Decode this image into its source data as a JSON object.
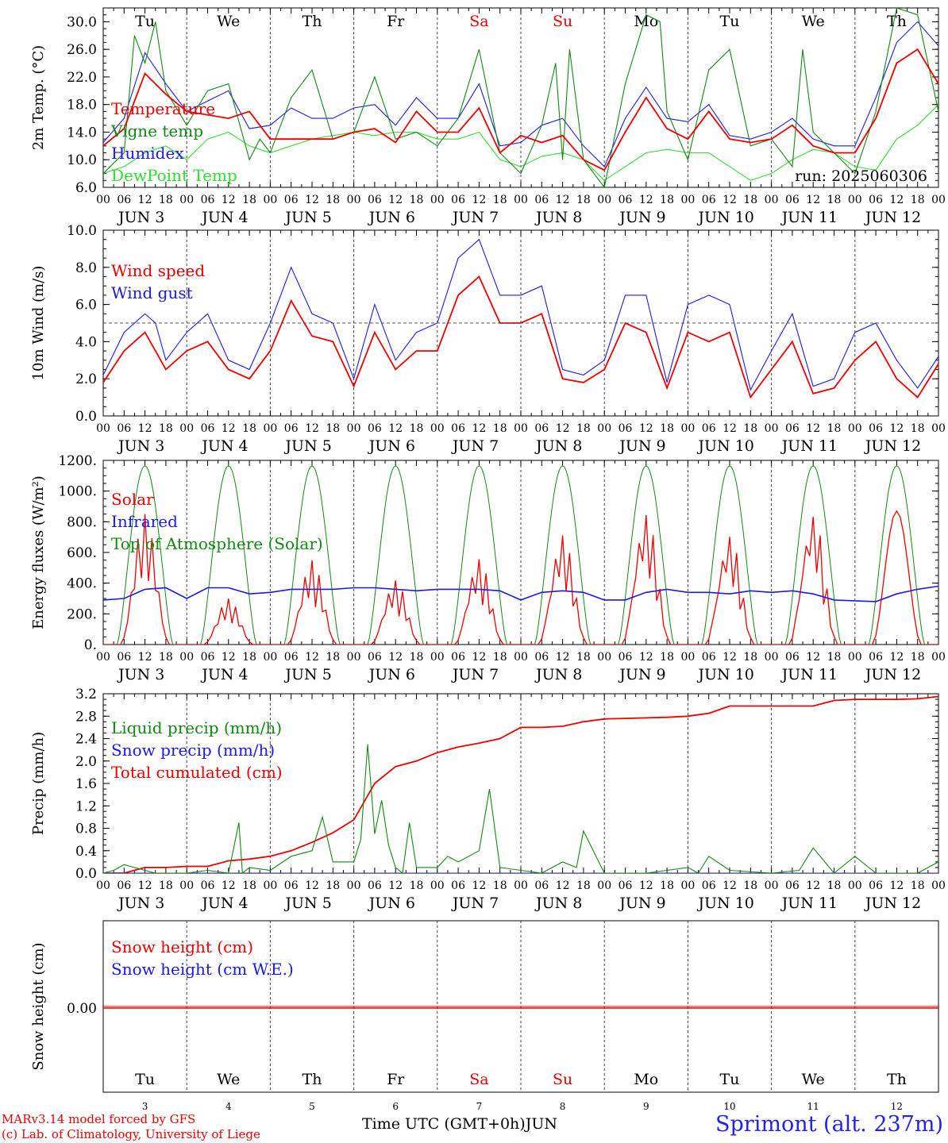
{
  "run_label": "run: 2025060306",
  "day_abbrevs": [
    "Tu",
    "We",
    "Th",
    "Fr",
    "Sa",
    "Su",
    "Mo",
    "Tu",
    "We",
    "Th"
  ],
  "weekend_flags": [
    false,
    false,
    false,
    false,
    true,
    true,
    false,
    false,
    false,
    false
  ],
  "day_numbers": [
    "3",
    "4",
    "5",
    "6",
    "7",
    "8",
    "9",
    "10",
    "11",
    "12"
  ],
  "date_labels": [
    "JUN  3",
    "JUN  4",
    "JUN  5",
    "JUN  6",
    "JUN  7",
    "JUN  8",
    "JUN  9",
    "JUN 10",
    "JUN 11",
    "JUN 12"
  ],
  "hour_labels": [
    "00",
    "06",
    "12",
    "18"
  ],
  "x_title": "Time UTC (GMT+0h)",
  "x_month": "JUN",
  "footer": {
    "line1": "MARv3.14 model forced by GFS",
    "line2": "(c) Lab. of Climatology, University of Liege",
    "station": "Sprimont (alt. 237m)"
  },
  "colors": {
    "red": "#ee0000",
    "green": "#138813",
    "blue": "#1a1ae6",
    "lightgreen": "#33dd33",
    "grid": "#444444"
  },
  "chart_data": [
    {
      "type": "line",
      "ylabel": "2m Temp. (°C)",
      "ylim": [
        6,
        32
      ],
      "ytick_labels": [
        "6.0",
        "10.0",
        "14.0",
        "18.0",
        "22.0",
        "26.0",
        "30.0"
      ],
      "legend_placement": "left",
      "series": [
        {
          "name": "Temperature",
          "color": "red",
          "x_hours": [
            0,
            6,
            12,
            18,
            24,
            36,
            42,
            48,
            54,
            60,
            66,
            72,
            78,
            84,
            90,
            96,
            102,
            108,
            114,
            120,
            126,
            132,
            138,
            144,
            150,
            156,
            162,
            168,
            174,
            180,
            186,
            192,
            198,
            204,
            210,
            216,
            222,
            228,
            234,
            240
          ],
          "values": [
            12.0,
            14.5,
            22.5,
            19.5,
            17,
            16,
            17,
            13,
            13,
            13,
            13,
            14,
            14.5,
            12.5,
            17,
            14,
            14,
            17.5,
            11,
            13.5,
            12.5,
            13.5,
            10,
            8.5,
            14,
            19,
            14.5,
            13,
            17,
            13,
            12.5,
            13,
            15,
            12,
            11,
            11,
            16,
            24,
            26,
            21
          ]
        },
        {
          "name": "Vigne temp",
          "color": "green",
          "x_hours": [
            0,
            6,
            9,
            12,
            15,
            18,
            24,
            30,
            36,
            42,
            45,
            48,
            54,
            60,
            66,
            72,
            78,
            84,
            90,
            96,
            102,
            108,
            114,
            120,
            126,
            130,
            132,
            134,
            138,
            144,
            150,
            156,
            160,
            162,
            168,
            174,
            180,
            186,
            192,
            198,
            201,
            204,
            210,
            216,
            222,
            228,
            234,
            240
          ],
          "values": [
            8,
            11,
            28,
            24,
            30,
            20,
            15,
            20,
            21,
            10,
            13,
            11,
            19,
            23,
            13,
            14,
            22,
            13,
            14,
            12,
            16,
            26,
            11,
            8,
            15,
            24,
            10,
            26,
            10,
            6,
            21,
            31,
            30,
            17,
            10,
            23,
            26,
            12,
            13,
            9,
            26,
            14,
            11,
            8,
            17,
            32,
            31,
            17
          ]
        },
        {
          "name": "Humidex",
          "color": "blue",
          "x_hours": [
            0,
            6,
            12,
            18,
            24,
            30,
            36,
            42,
            48,
            54,
            60,
            66,
            72,
            78,
            84,
            90,
            96,
            102,
            108,
            114,
            120,
            126,
            132,
            138,
            144,
            150,
            156,
            162,
            168,
            174,
            180,
            186,
            192,
            198,
            204,
            210,
            216,
            222,
            228,
            234,
            240
          ],
          "values": [
            12.5,
            16,
            25.5,
            21,
            17,
            18.5,
            20,
            14.5,
            15,
            17.5,
            16,
            16,
            17.5,
            18,
            15,
            19,
            16,
            16,
            21,
            12,
            12.5,
            15,
            16,
            12,
            9,
            16,
            20.5,
            16,
            15.5,
            18,
            13.5,
            13,
            14,
            16,
            13,
            12,
            12,
            19,
            27,
            30,
            26.5
          ]
        },
        {
          "name": "DewPoint Temp",
          "color": "lightgreen",
          "x_hours": [
            0,
            6,
            12,
            18,
            24,
            30,
            36,
            42,
            48,
            54,
            60,
            66,
            72,
            78,
            84,
            90,
            96,
            102,
            108,
            114,
            120,
            126,
            132,
            138,
            144,
            150,
            156,
            162,
            168,
            174,
            180,
            186,
            192,
            198,
            204,
            210,
            216,
            222,
            228,
            234,
            240
          ],
          "values": [
            8,
            9,
            11,
            12,
            10,
            13,
            14,
            12,
            11,
            12,
            13,
            13.5,
            14,
            13.5,
            14,
            14,
            13,
            13,
            14,
            10,
            9,
            10.5,
            11,
            10,
            7,
            9,
            11,
            11.5,
            11,
            11,
            9,
            7,
            8,
            10,
            11.5,
            11,
            9,
            8.5,
            13,
            15,
            18
          ]
        }
      ]
    },
    {
      "type": "line",
      "ylabel": "10m Wind (m/s)",
      "ylim": [
        0,
        10
      ],
      "ytick_labels": [
        "0.0",
        "2.0",
        "4.0",
        "6.0",
        "8.0",
        "10.0"
      ],
      "reference_line": 5,
      "series": [
        {
          "name": "Wind speed",
          "color": "red",
          "x_hours": [
            0,
            6,
            12,
            15,
            18,
            24,
            30,
            36,
            42,
            48,
            54,
            60,
            66,
            72,
            78,
            84,
            90,
            96,
            102,
            108,
            114,
            120,
            126,
            132,
            138,
            144,
            150,
            156,
            162,
            168,
            174,
            180,
            186,
            192,
            198,
            204,
            210,
            216,
            222,
            228,
            234,
            240
          ],
          "values": [
            1.8,
            3.5,
            4.5,
            3.5,
            2.5,
            3.5,
            4,
            2.5,
            2,
            3.5,
            6.2,
            4.3,
            4,
            1.6,
            4.5,
            2.5,
            3.5,
            3.5,
            6.5,
            7.5,
            5,
            5,
            5.5,
            2,
            1.8,
            2.5,
            5,
            4.5,
            1.5,
            4.5,
            4,
            4.5,
            1.0,
            2.5,
            4,
            1.2,
            1.5,
            3,
            4,
            2,
            1,
            2.8
          ]
        },
        {
          "name": "Wind gust",
          "color": "blue",
          "x_hours": [
            0,
            6,
            12,
            15,
            18,
            24,
            30,
            36,
            42,
            48,
            54,
            60,
            66,
            72,
            78,
            84,
            90,
            96,
            102,
            108,
            114,
            120,
            126,
            132,
            138,
            144,
            150,
            156,
            162,
            168,
            174,
            180,
            186,
            192,
            198,
            204,
            210,
            216,
            222,
            228,
            234,
            240
          ],
          "values": [
            2.2,
            4.5,
            5.5,
            5,
            3,
            4.5,
            5.5,
            3,
            2.5,
            5,
            8,
            5.5,
            5,
            2,
            6,
            3,
            4.5,
            5,
            8.5,
            9.5,
            6.5,
            6.5,
            7,
            2.5,
            2.2,
            3,
            6.5,
            6.5,
            1.8,
            6,
            6.5,
            6,
            1.4,
            3.5,
            5.5,
            1.6,
            2,
            4.5,
            5,
            3,
            1.5,
            3.2
          ]
        }
      ]
    },
    {
      "type": "line",
      "ylabel": "Energy fluxes (W/m²)",
      "ylim": [
        0,
        1200
      ],
      "ytick_labels": [
        "0.",
        "200.",
        "400.",
        "600.",
        "800.",
        "1000.",
        "1200."
      ],
      "series": [
        {
          "name": "Solar",
          "color": "red",
          "peaks": [
            850,
            300,
            550,
            420,
            560,
            720,
            860,
            720,
            860,
            870
          ]
        },
        {
          "name": "Infrared",
          "color": "blue",
          "x_hours": [
            0,
            6,
            12,
            18,
            24,
            30,
            36,
            42,
            48,
            54,
            60,
            66,
            72,
            78,
            84,
            90,
            96,
            102,
            108,
            114,
            120,
            126,
            132,
            138,
            144,
            150,
            156,
            162,
            168,
            174,
            180,
            186,
            192,
            198,
            204,
            210,
            216,
            222,
            228,
            234,
            240
          ],
          "values": [
            290,
            300,
            360,
            370,
            300,
            370,
            370,
            330,
            340,
            360,
            360,
            360,
            370,
            370,
            360,
            350,
            360,
            360,
            360,
            350,
            290,
            340,
            350,
            340,
            290,
            290,
            340,
            360,
            340,
            340,
            330,
            350,
            340,
            350,
            330,
            290,
            285,
            280,
            330,
            360,
            380
          ]
        },
        {
          "name": "Top of Atmosphere (Solar)",
          "color": "green",
          "peak": 1165
        }
      ]
    },
    {
      "type": "line",
      "ylabel": "Precip (mm/h)",
      "ylim": [
        0,
        3.2
      ],
      "ytick_labels": [
        "0.0",
        "0.4",
        "0.8",
        "1.2",
        "1.6",
        "2.0",
        "2.4",
        "2.8",
        "3.2"
      ],
      "series": [
        {
          "name": "Liquid precip (mm/h)",
          "color": "green",
          "x_hours": [
            0,
            3,
            6,
            9,
            12,
            15,
            18,
            24,
            30,
            36,
            39,
            40,
            42,
            48,
            54,
            60,
            63,
            66,
            72,
            74,
            76,
            78,
            80,
            82,
            84,
            86,
            88,
            90,
            96,
            99,
            102,
            108,
            111,
            114,
            120,
            126,
            132,
            136,
            138,
            144,
            150,
            156,
            162,
            168,
            171,
            174,
            180,
            192,
            200,
            204,
            210,
            216,
            222,
            228,
            234,
            240
          ],
          "values": [
            0,
            0.05,
            0.15,
            0.1,
            0.05,
            0,
            0,
            0,
            0.05,
            0,
            0.9,
            0,
            0.1,
            0.05,
            0.3,
            0.4,
            1.0,
            0.2,
            0.2,
            0.6,
            2.3,
            0.7,
            1.3,
            0.5,
            0.1,
            0,
            0.9,
            0.1,
            0.1,
            0.3,
            0.2,
            0.4,
            1.5,
            0.1,
            0.05,
            0,
            0.2,
            0.1,
            0.75,
            0,
            0,
            0,
            0.05,
            0.1,
            0,
            0.3,
            0.05,
            0,
            0.05,
            0.45,
            0,
            0.3,
            0,
            0,
            0,
            0.2
          ]
        },
        {
          "name": "Snow precip (mm/h)",
          "color": "blue",
          "x_hours": [
            0,
            240
          ],
          "values": [
            0,
            0
          ]
        },
        {
          "name": "Total cumulated (cm)",
          "color": "red",
          "x_hours": [
            0,
            6,
            12,
            18,
            24,
            30,
            36,
            42,
            48,
            54,
            60,
            66,
            72,
            78,
            84,
            90,
            96,
            102,
            108,
            114,
            120,
            126,
            132,
            138,
            144,
            150,
            156,
            162,
            168,
            174,
            180,
            186,
            192,
            198,
            204,
            210,
            216,
            222,
            228,
            234,
            240
          ],
          "values": [
            0,
            0,
            0.1,
            0.1,
            0.12,
            0.12,
            0.22,
            0.25,
            0.3,
            0.4,
            0.55,
            0.72,
            0.95,
            1.6,
            1.9,
            2.0,
            2.15,
            2.25,
            2.32,
            2.4,
            2.6,
            2.6,
            2.62,
            2.7,
            2.75,
            2.76,
            2.77,
            2.78,
            2.8,
            2.85,
            2.98,
            2.98,
            2.98,
            2.98,
            2.98,
            3.08,
            3.1,
            3.1,
            3.1,
            3.11,
            3.15
          ]
        }
      ]
    },
    {
      "type": "line",
      "ylabel": "Snow height (cm)",
      "ytick_labels": [
        "0.00"
      ],
      "series": [
        {
          "name": "Snow height (cm)",
          "color": "red",
          "x_hours": [
            0,
            240
          ],
          "values": [
            0,
            0
          ]
        },
        {
          "name": "Snow height (cm W.E.)",
          "color": "blue",
          "x_hours": [
            0,
            240
          ],
          "values": [
            0,
            0
          ]
        }
      ]
    }
  ]
}
